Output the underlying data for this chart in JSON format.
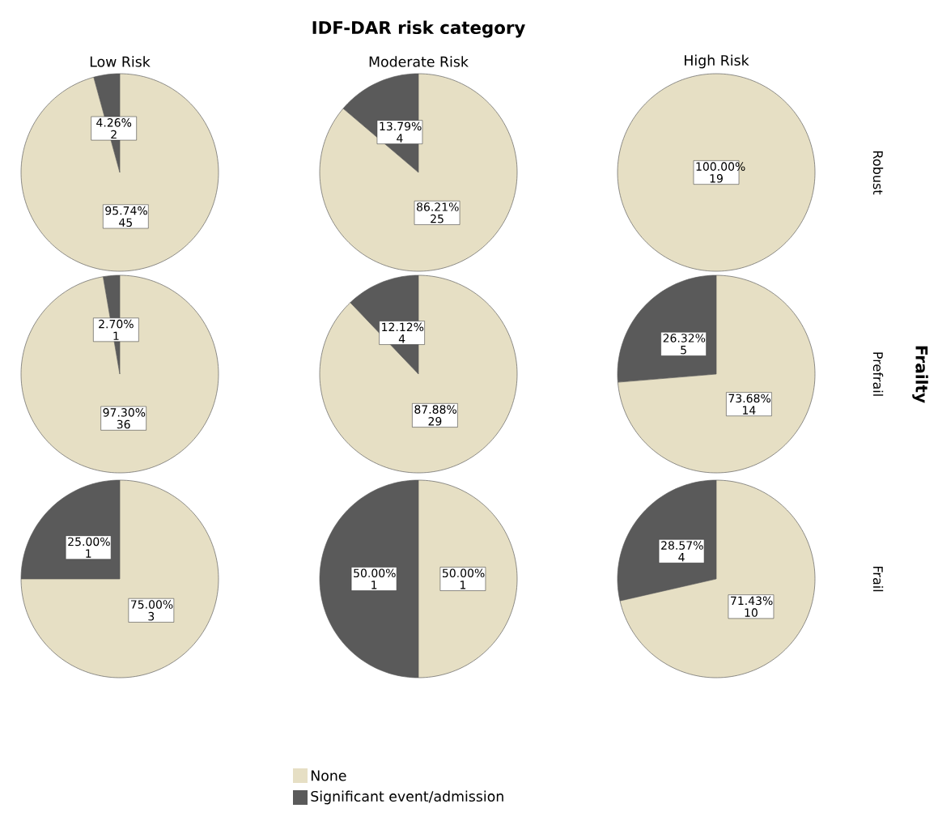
{
  "chart_data": [
    {
      "type": "pie",
      "title": "Low Risk",
      "categories": [
        null,
        null
      ],
      "values": [
        4.26,
        95.74
      ],
      "value_labels": [
        "4.26% 2",
        "95.74% 45"
      ],
      "colors": [
        "#5a5a5a",
        "#e6dfc4"
      ]
    },
    {
      "type": "pie",
      "title": "Moderate Risk",
      "categories": [
        null,
        null
      ],
      "values": [
        13.79,
        86.21
      ],
      "value_labels": [
        "13.79% 4",
        "86.21% 25"
      ],
      "colors": [
        "#5a5a5a",
        "#e6dfc4"
      ]
    },
    {
      "type": "pie",
      "title": "High Risk",
      "y2label": "Robust",
      "categories": [
        null,
        null
      ],
      "values": [
        0,
        100
      ],
      "value_labels": [
        null,
        "100.00% 19"
      ],
      "colors": [
        "#5a5a5a",
        "#e6dfc4"
      ]
    },
    {
      "type": "pie",
      "categories": [
        null,
        null
      ],
      "values": [
        2.7,
        97.3
      ],
      "value_labels": [
        "2.70% 1",
        "97.30% 36"
      ],
      "colors": [
        "#5a5a5a",
        "#e6dfc4"
      ]
    },
    {
      "type": "pie",
      "categories": [
        null,
        null
      ],
      "values": [
        12.12,
        87.88
      ],
      "value_labels": [
        "12.12% 4",
        "87.88% 29"
      ],
      "colors": [
        "#5a5a5a",
        "#e6dfc4"
      ]
    },
    {
      "type": "pie",
      "y2label": "Prefrail",
      "categories": [
        null,
        null
      ],
      "values": [
        26.32,
        73.68
      ],
      "value_labels": [
        "26.32% 5",
        "73.68% 14"
      ],
      "colors": [
        "#5a5a5a",
        "#e6dfc4"
      ]
    },
    {
      "type": "pie",
      "categories": [
        null,
        null
      ],
      "values": [
        25,
        75
      ],
      "value_labels": [
        "25.00% 1",
        "75.00% 3"
      ],
      "colors": [
        "#5a5a5a",
        "#e6dfc4"
      ]
    },
    {
      "type": "pie",
      "legend": "bottom",
      "categories": [
        "Significant event/admission",
        "None"
      ],
      "values": [
        50,
        50
      ],
      "value_labels": [
        "50.00% 1",
        "50.00% 1"
      ],
      "colors": [
        "#5a5a5a",
        "#e6dfc4"
      ]
    },
    {
      "type": "pie",
      "y2label": "Frail",
      "categories": [
        null,
        null
      ],
      "values": [
        28.57,
        71.43
      ],
      "value_labels": [
        "28.57% 4",
        "71.43% 10"
      ],
      "colors": [
        "#5a5a5a",
        "#e6dfc4"
      ]
    },
    {
      "type": "other",
      "title": "IDF-DAR risk category",
      "y2label": "Frailty"
    }
  ]
}
